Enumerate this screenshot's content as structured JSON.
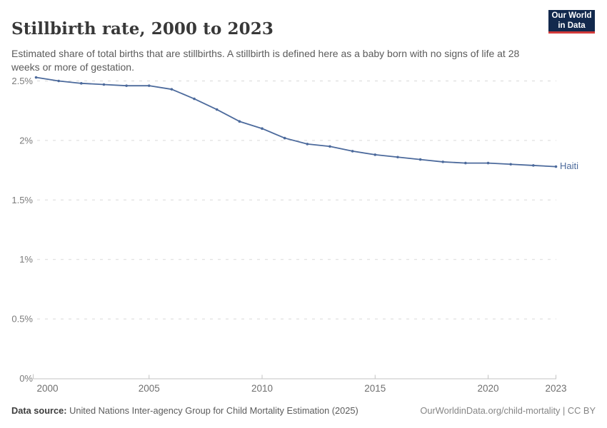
{
  "header": {
    "title": "Stillbirth rate, 2000 to 2023",
    "subtitle": "Estimated share of total births that are stillbirths. A stillbirth is defined here as a baby born with no signs of life at 28 weeks or more of gestation."
  },
  "logo": {
    "line1": "Our World",
    "line2": "in Data",
    "bg_color": "#12294d",
    "accent_color": "#d23a3a"
  },
  "chart_data": {
    "type": "line",
    "title": "Stillbirth rate, 2000 to 2023",
    "xlabel": "",
    "ylabel": "",
    "unit": "%",
    "grid": "horizontal-dashed",
    "legend_position": "end-of-line-label",
    "x": [
      2000,
      2001,
      2002,
      2003,
      2004,
      2005,
      2006,
      2007,
      2008,
      2009,
      2010,
      2011,
      2012,
      2013,
      2014,
      2015,
      2016,
      2017,
      2018,
      2019,
      2020,
      2021,
      2022,
      2023
    ],
    "series": [
      {
        "name": "Haiti",
        "color": "#4c6a9c",
        "values": [
          2.53,
          2.5,
          2.48,
          2.47,
          2.46,
          2.46,
          2.43,
          2.35,
          2.26,
          2.16,
          2.1,
          2.02,
          1.97,
          1.95,
          1.91,
          1.88,
          1.86,
          1.84,
          1.82,
          1.81,
          1.81,
          1.8,
          1.79,
          1.78
        ]
      }
    ],
    "xlim": [
      2000,
      2023
    ],
    "ylim": [
      0,
      2.5
    ],
    "yticks": [
      {
        "value": 0,
        "label": "0%"
      },
      {
        "value": 0.5,
        "label": "0.5%"
      },
      {
        "value": 1,
        "label": "1%"
      },
      {
        "value": 1.5,
        "label": "1.5%"
      },
      {
        "value": 2,
        "label": "2%"
      },
      {
        "value": 2.5,
        "label": "2.5%"
      }
    ],
    "xticks": [
      {
        "value": 2000,
        "label": "2000"
      },
      {
        "value": 2005,
        "label": "2005"
      },
      {
        "value": 2010,
        "label": "2010"
      },
      {
        "value": 2015,
        "label": "2015"
      },
      {
        "value": 2020,
        "label": "2020"
      },
      {
        "value": 2023,
        "label": "2023"
      }
    ]
  },
  "footer": {
    "datasource_label": "Data source:",
    "datasource_value": " United Nations Inter-agency Group for Child Mortality Estimation (2025)",
    "link_text": "OurWorldinData.org/child-mortality | CC BY"
  }
}
